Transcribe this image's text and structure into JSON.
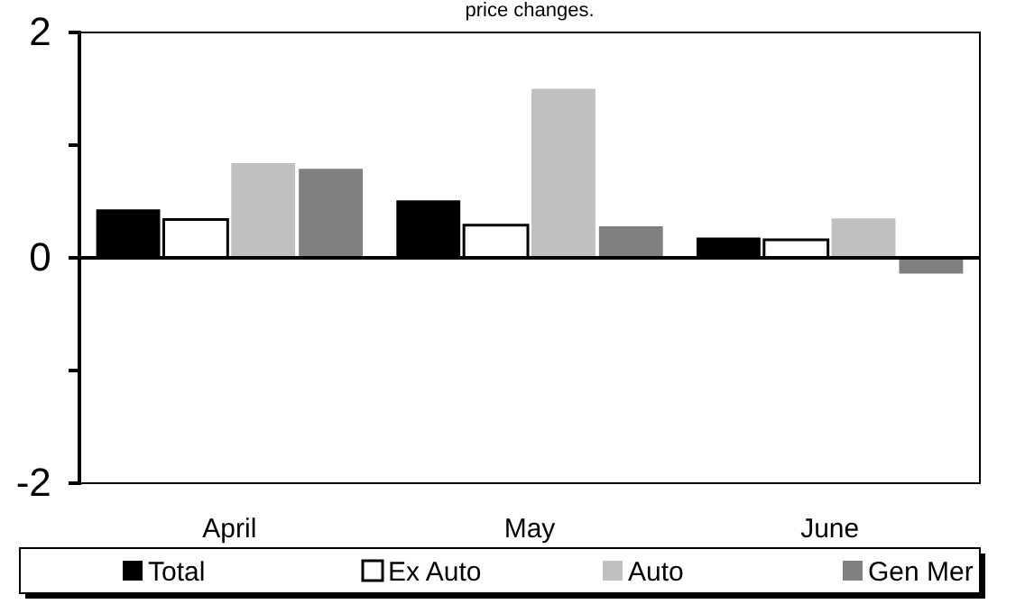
{
  "chart_data": {
    "type": "bar",
    "title": "price changes.",
    "categories": [
      "April",
      "May",
      "June"
    ],
    "series": [
      {
        "name": "Total",
        "color": "#000000",
        "values": [
          0.43,
          0.51,
          0.18
        ]
      },
      {
        "name": "Ex Auto",
        "color": "#ffffff",
        "values": [
          0.34,
          0.29,
          0.16
        ]
      },
      {
        "name": "Auto",
        "color": "#c0c0c0",
        "values": [
          0.84,
          1.5,
          0.35
        ]
      },
      {
        "name": "Gen Mer",
        "color": "#808080",
        "values": [
          0.79,
          0.28,
          -0.14
        ]
      }
    ],
    "ylim": [
      -2,
      2
    ],
    "yticks": [
      -2,
      {
        "value": -1,
        "label": null
      },
      0,
      {
        "value": 1,
        "label": null
      },
      2
    ],
    "legend": "bottom"
  }
}
